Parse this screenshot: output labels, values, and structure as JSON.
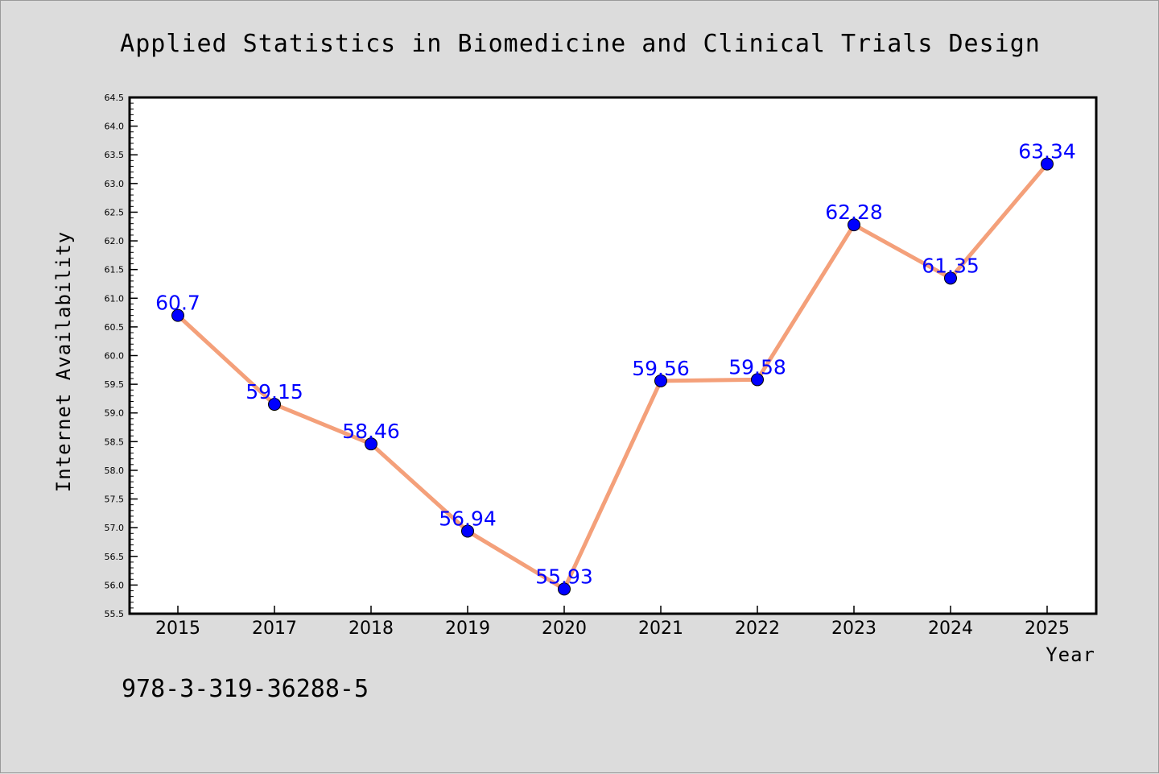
{
  "chart_data": {
    "type": "line",
    "title": "Applied Statistics in Biomedicine and Clinical Trials Design",
    "xlabel": "Year",
    "ylabel": "Internet Availability",
    "categories": [
      "2015",
      "2017",
      "2018",
      "2019",
      "2020",
      "2021",
      "2022",
      "2023",
      "2024",
      "2025"
    ],
    "series": [
      {
        "values": [
          60.7,
          59.15,
          58.46,
          56.94,
          55.93,
          59.56,
          59.58,
          62.28,
          61.35,
          63.34
        ],
        "data_labels": [
          "60.7",
          "59.15",
          "58.46",
          "56.94",
          "55.93",
          "59.56",
          "59.58",
          "62.28",
          "61.35",
          "63.34"
        ],
        "line_color": "#f4a07a",
        "marker_color": "#0000ff"
      }
    ],
    "ylim": [
      55.5,
      64.5
    ],
    "yticks": [
      "55.5",
      "56.0",
      "56.5",
      "57.0",
      "57.5",
      "58.0",
      "58.5",
      "59.0",
      "59.5",
      "60.0",
      "60.5",
      "61.0",
      "61.5",
      "62.0",
      "62.5",
      "63.0",
      "63.5",
      "64.0",
      "64.5"
    ],
    "grid": false,
    "legend": "none"
  },
  "footer_text": "978-3-319-36288-5",
  "colors": {
    "background": "#dcdcdc",
    "plot_background": "#ffffff",
    "label_color": "#0000ff"
  }
}
